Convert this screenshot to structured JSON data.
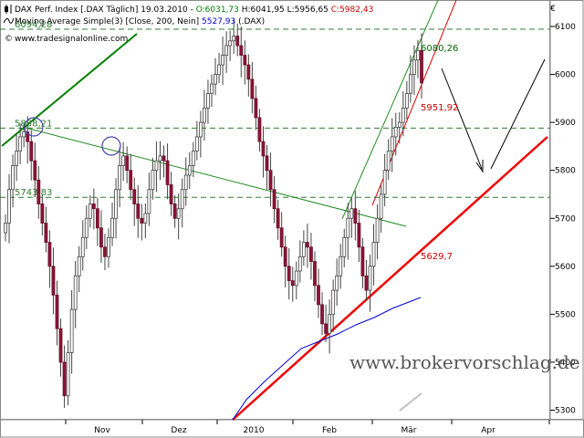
{
  "header": {
    "line1": [
      {
        "text": "DAX Perf. Index [.DAX  Täglich] 19.03.2010 - ",
        "color": "#000000"
      },
      {
        "text": "O:6031,73",
        "color": "#008000"
      },
      {
        "text": " H:6041,95 L:5956,65 ",
        "color": "#000000"
      },
      {
        "text": "C:5982,43",
        "color": "#cc0000"
      }
    ],
    "line2": [
      {
        "text": "Moving Average Simple(3) [Close, 200, Nein] ",
        "color": "#000000"
      },
      {
        "text": "5527,93",
        "color": "#0000cc"
      },
      {
        "text": " (.DAX)",
        "color": "#000000"
      }
    ],
    "line3": "www.tradesignalonline.com",
    "currency_symbol": "€"
  },
  "watermark": "www.brokervorschlag.de",
  "chart_data": {
    "type": "candlestick",
    "ylim": [
      5280,
      6140
    ],
    "y_ticks": [
      "5300",
      "5400",
      "5500",
      "5600",
      "5700",
      "5800",
      "5900",
      "6000",
      "6100"
    ],
    "x_ticks": [
      "Nov",
      "Dez",
      "2010",
      "Feb",
      "Mär",
      "Apr"
    ],
    "horizontal_levels": [
      {
        "label": "6094,28",
        "value": 6094.28
      },
      {
        "label": "5888,21",
        "value": 5888.21
      },
      {
        "label": "5743,83",
        "value": 5743.83
      }
    ],
    "line_labels": [
      {
        "text": "6080,26",
        "color": "#006400"
      },
      {
        "text": "5951,92",
        "color": "#cc0000"
      },
      {
        "text": "5629,7",
        "color": "#cc0000"
      }
    ],
    "candle_closes": [
      5690,
      5760,
      5810,
      5840,
      5870,
      5880,
      5860,
      5820,
      5780,
      5730,
      5690,
      5650,
      5600,
      5540,
      5470,
      5400,
      5330,
      5420,
      5510,
      5580,
      5620,
      5660,
      5700,
      5730,
      5720,
      5680,
      5640,
      5620,
      5660,
      5700,
      5760,
      5810,
      5830,
      5800,
      5760,
      5730,
      5700,
      5690,
      5710,
      5760,
      5800,
      5820,
      5830,
      5820,
      5770,
      5730,
      5700,
      5720,
      5760,
      5790,
      5810,
      5840,
      5870,
      5900,
      5930,
      5960,
      5980,
      6000,
      6020,
      6040,
      6060,
      6070,
      6080,
      6060,
      6040,
      6020,
      5990,
      5950,
      5910,
      5860,
      5830,
      5800,
      5760,
      5720,
      5680,
      5640,
      5600,
      5570,
      5560,
      5590,
      5620,
      5650,
      5640,
      5610,
      5560,
      5520,
      5480,
      5460,
      5500,
      5550,
      5580,
      5620,
      5660,
      5700,
      5720,
      5690,
      5640,
      5580,
      5550,
      5600,
      5650,
      5700,
      5750,
      5800,
      5840,
      5870,
      5890,
      5900,
      5930,
      5960,
      6000,
      6030,
      6050,
      5982.43
    ]
  }
}
